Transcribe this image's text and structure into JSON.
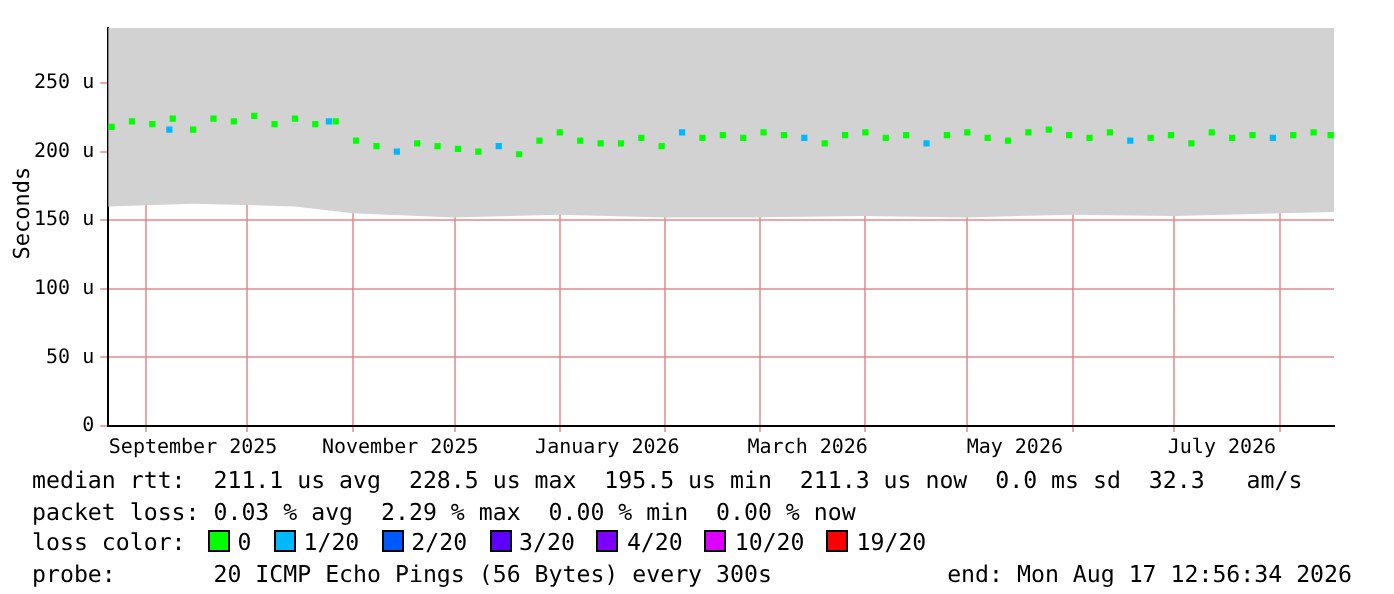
{
  "chart_data": {
    "type": "scatter",
    "ylabel": "Seconds",
    "xlim": [
      "2025-08-21",
      "2026-08-17"
    ],
    "xticks": [
      {
        "value": "2025-09-01",
        "label": null
      },
      {
        "value": "2025-09-15",
        "label": "September 2025"
      },
      {
        "value": "2025-10-01",
        "label": null
      },
      {
        "value": "2025-11-01",
        "label": null
      },
      {
        "value": "2025-11-15",
        "label": "November 2025"
      },
      {
        "value": "2025-12-01",
        "label": null
      },
      {
        "value": "2026-01-01",
        "label": null
      },
      {
        "value": "2026-01-15",
        "label": "January 2026"
      },
      {
        "value": "2026-02-01",
        "label": null
      },
      {
        "value": "2026-03-01",
        "label": null
      },
      {
        "value": "2026-03-15",
        "label": "March 2026"
      },
      {
        "value": "2026-04-01",
        "label": null
      },
      {
        "value": "2026-05-01",
        "label": null
      },
      {
        "value": "2026-05-15",
        "label": "May 2026"
      },
      {
        "value": "2026-06-01",
        "label": null
      },
      {
        "value": "2026-07-01",
        "label": null
      },
      {
        "value": "2026-07-15",
        "label": "July 2026"
      },
      {
        "value": "2026-08-01",
        "label": null
      }
    ],
    "ylim": [
      0,
      290
    ],
    "yticks": [
      0,
      {
        "value": 50,
        "label": "50 u"
      },
      {
        "value": 100,
        "label": "100 u"
      },
      {
        "value": 150,
        "label": "150 u"
      },
      {
        "value": 200,
        "label": "200 u"
      },
      {
        "value": 250,
        "label": "250 u"
      }
    ],
    "grid": true,
    "legend": "bottom",
    "legend_title": "loss color:",
    "marker": "square",
    "series": [
      {
        "type": "area",
        "color": "#d2d2d2",
        "x": [
          "2025-08-21",
          "2025-09-15",
          "2025-10-15",
          "2025-11-01",
          "2025-12-01",
          "2026-01-01",
          "2026-02-01",
          "2026-03-01",
          "2026-04-01",
          "2026-05-01",
          "2026-06-01",
          "2026-07-01",
          "2026-08-01",
          "2026-08-17"
        ],
        "values": [
          null,
          null,
          null,
          null,
          null,
          null,
          null,
          null,
          null,
          null,
          null,
          null,
          null,
          null
        ],
        "lower": [
          160,
          162,
          160,
          155,
          152,
          154,
          152,
          152,
          153,
          152,
          154,
          153,
          155,
          156
        ],
        "upper": [
          290,
          290,
          290,
          290,
          290,
          290,
          290,
          290,
          290,
          290,
          290,
          290,
          290,
          290
        ]
      },
      {
        "name": "0",
        "color": "#00ff00",
        "x": [
          "2025-08-22",
          "2025-08-28",
          "2025-09-03",
          "2025-09-09",
          "2025-09-15",
          "2025-09-21",
          "2025-09-27",
          "2025-10-03",
          "2025-10-09",
          "2025-10-15",
          "2025-10-21",
          "2025-10-27",
          "2025-11-02",
          "2025-11-08",
          "2025-11-20",
          "2025-11-26",
          "2025-12-02",
          "2025-12-08",
          "2025-12-20",
          "2025-12-26",
          "2026-01-01",
          "2026-01-07",
          "2026-01-13",
          "2026-01-19",
          "2026-01-25",
          "2026-01-31",
          "2026-02-12",
          "2026-02-18",
          "2026-02-24",
          "2026-03-02",
          "2026-03-08",
          "2026-03-20",
          "2026-03-26",
          "2026-04-01",
          "2026-04-07",
          "2026-04-13",
          "2026-04-25",
          "2026-05-01",
          "2026-05-07",
          "2026-05-13",
          "2026-05-19",
          "2026-05-25",
          "2026-05-31",
          "2026-06-06",
          "2026-06-12",
          "2026-06-24",
          "2026-06-30",
          "2026-07-06",
          "2026-07-12",
          "2026-07-18",
          "2026-07-24",
          "2026-08-05",
          "2026-08-11",
          "2026-08-16"
        ],
        "values": [
          218,
          222,
          220,
          224,
          216,
          224,
          222,
          226,
          220,
          224,
          220,
          222,
          208,
          204,
          206,
          204,
          202,
          200,
          198,
          208,
          214,
          208,
          206,
          206,
          210,
          204,
          210,
          212,
          210,
          214,
          212,
          206,
          212,
          214,
          210,
          212,
          212,
          214,
          210,
          208,
          214,
          216,
          212,
          210,
          214,
          210,
          212,
          206,
          214,
          210,
          212,
          212,
          214,
          212
        ]
      },
      {
        "name": "1/20",
        "color": "#00b8ff",
        "x": [
          "2025-09-08",
          "2025-10-25",
          "2025-11-14",
          "2025-12-14",
          "2026-02-06",
          "2026-03-14",
          "2026-04-19",
          "2026-06-18",
          "2026-07-30"
        ],
        "values": [
          216,
          222,
          200,
          204,
          214,
          210,
          206,
          208,
          210
        ]
      },
      {
        "name": "2/20",
        "color": "#0059ff"
      },
      {
        "name": "3/20",
        "color": "#5e00ff"
      },
      {
        "name": "4/20",
        "color": "#7e00ff"
      },
      {
        "name": "10/20",
        "color": "#dd00ff"
      },
      {
        "name": "19/20",
        "color": "#ff0000"
      }
    ],
    "annotations": [
      "median rtt:  211.1 us avg  228.5 us max  195.5 us min  211.3 us now  0.0 ms sd  32.3   am/s",
      "packet loss: 0.03 % avg  2.29 % max  0.00 % min  0.00 % now",
      "probe:       20 ICMP Echo Pings (56 Bytes) every 300s",
      "end: Mon Aug 17 12:56:34 2026"
    ]
  }
}
